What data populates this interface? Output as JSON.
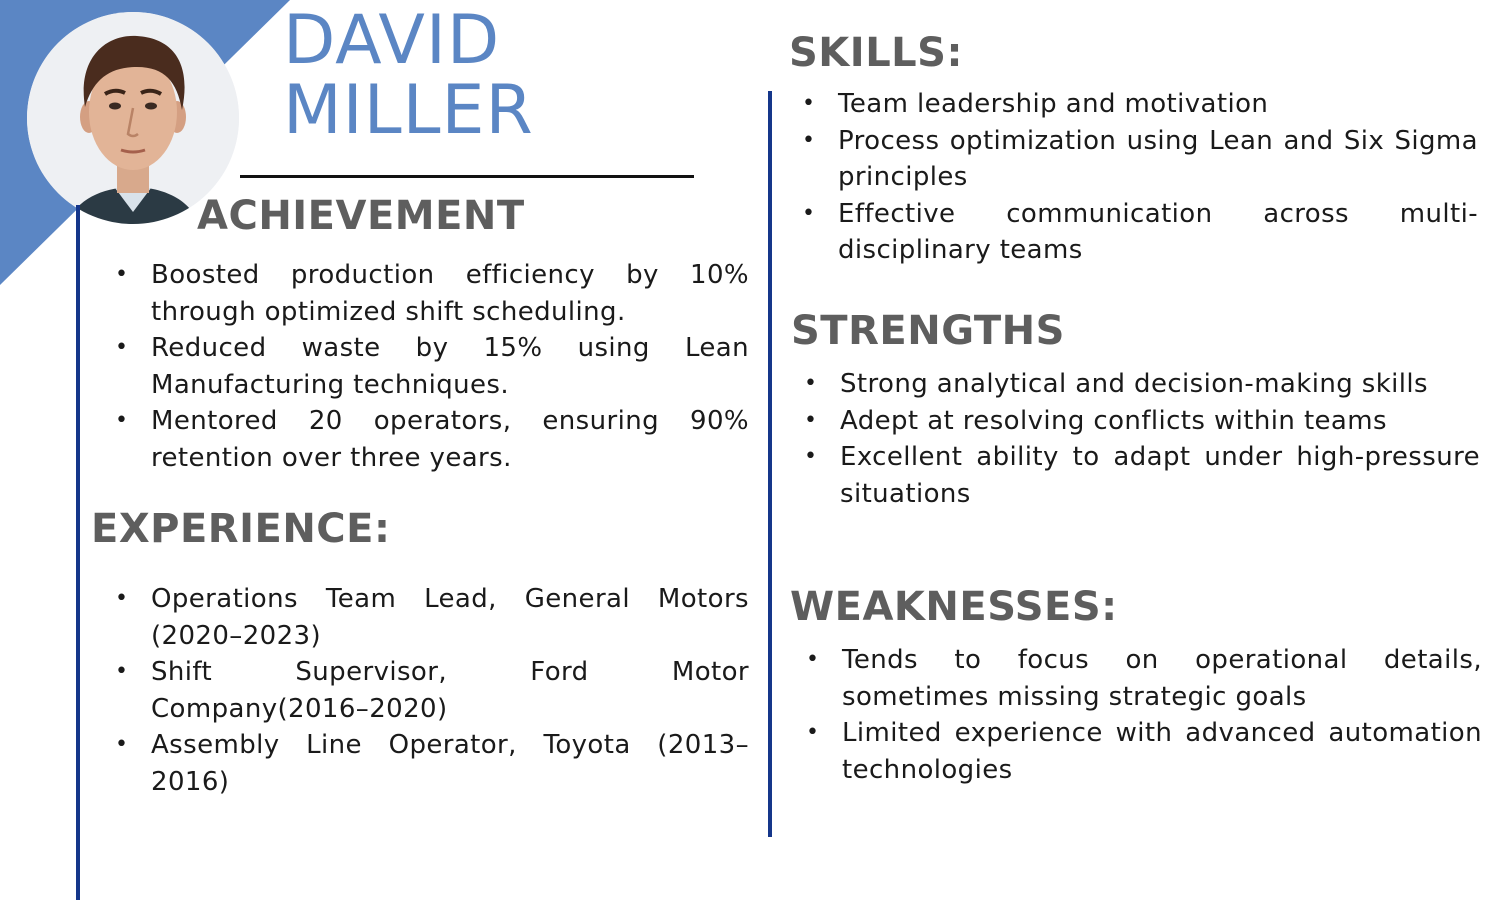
{
  "name": {
    "first": "DAVID",
    "last": "MILLER"
  },
  "colors": {
    "accent": "#5b86c4",
    "rule": "#15368a",
    "heading": "#5e5e5e"
  },
  "achievement": {
    "heading": "ACHIEVEMENT",
    "items": [
      "Boosted production efficiency by 10% through optimized shift scheduling.",
      "Reduced waste by 15% using Lean Manufacturing techniques.",
      "Mentored 20 operators, ensuring 90% retention over three years."
    ]
  },
  "experience": {
    "heading": "EXPERIENCE:",
    "items": [
      "Operations Team Lead, General Motors (2020–2023)",
      "Shift Supervisor, Ford Motor Company(2016–2020)",
      "Assembly Line Operator, Toyota (2013–2016)"
    ]
  },
  "skills": {
    "heading": "SKILLS:",
    "items": [
      "Team leadership and motivation",
      "Process optimization using Lean and Six Sigma principles",
      "Effective communication across multi-disciplinary teams"
    ]
  },
  "strengths": {
    "heading": "STRENGTHS",
    "items": [
      "Strong analytical and decision-making skills",
      "Adept at resolving conflicts within teams",
      "Excellent ability to adapt under high-pressure situations"
    ]
  },
  "weaknesses": {
    "heading": "WEAKNESSES:",
    "items": [
      "Tends to focus on operational details, sometimes missing strategic goals",
      "Limited experience with advanced automation technologies"
    ]
  }
}
